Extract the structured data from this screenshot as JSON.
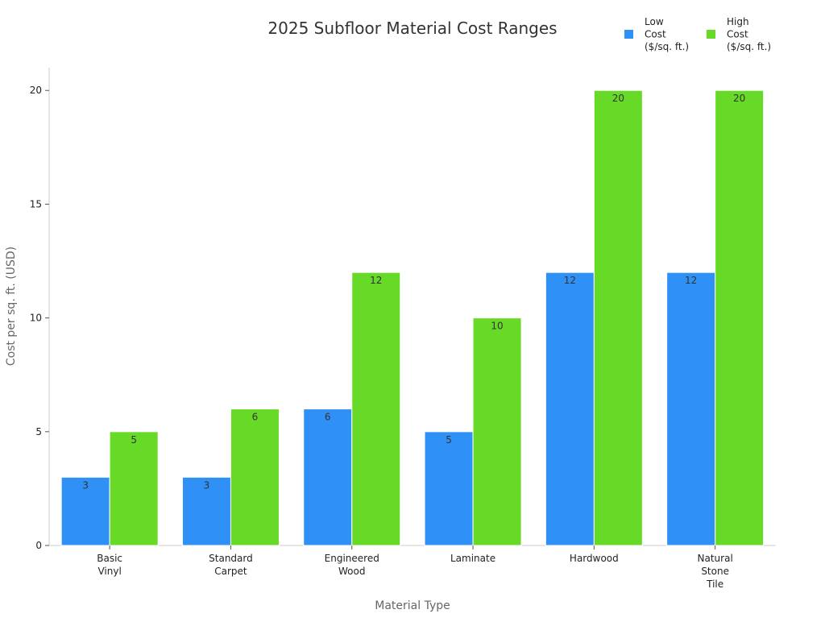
{
  "chart_data": {
    "type": "bar",
    "title": "2025 Subfloor Material Cost Ranges",
    "xlabel": "Material Type",
    "ylabel": "Cost per sq. ft. (USD)",
    "ylim": [
      0,
      21
    ],
    "yticks": [
      0,
      5,
      10,
      15,
      20
    ],
    "grid": false,
    "legend_position": "top-right",
    "categories": [
      [
        "Basic",
        "Vinyl"
      ],
      [
        "Standard",
        "Carpet"
      ],
      [
        "Engineered",
        "Wood"
      ],
      [
        "Laminate"
      ],
      [
        "Hardwood"
      ],
      [
        "Natural",
        "Stone",
        "Tile"
      ]
    ],
    "series": [
      {
        "name": [
          "Low",
          "Cost",
          "($/sq. ft.)"
        ],
        "color": "#2f91f5",
        "values": [
          3,
          3,
          6,
          5,
          12,
          12
        ]
      },
      {
        "name": [
          "High",
          "Cost",
          "($/sq. ft.)"
        ],
        "color": "#66da26",
        "values": [
          5,
          6,
          12,
          10,
          20,
          20
        ]
      }
    ]
  }
}
